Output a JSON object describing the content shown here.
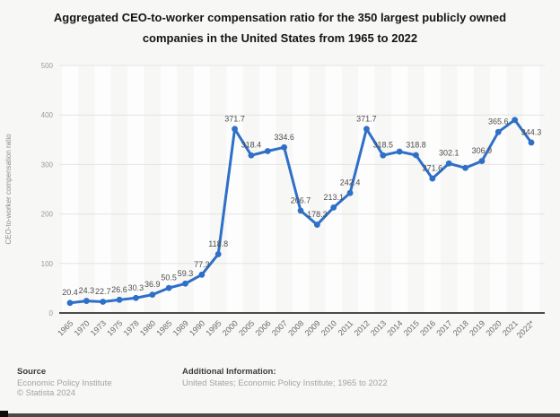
{
  "chart_data": {
    "type": "line",
    "title": "Aggregated CEO-to-worker compensation ratio for the 350 largest publicly owned companies in the United States from 1965 to 2022",
    "xlabel": "",
    "ylabel": "CEO-to-worker compensation ratio",
    "ylim": [
      0,
      500
    ],
    "yticks": [
      0,
      100,
      200,
      300,
      400,
      500
    ],
    "grid": true,
    "legend": false,
    "line_color": "#2e6fc7",
    "categories": [
      "1965",
      "1970",
      "1973",
      "1975",
      "1978",
      "1980",
      "1985",
      "1989",
      "1990",
      "1995",
      "2000",
      "2005",
      "2006",
      "2007",
      "2008",
      "2009",
      "2010",
      "2011",
      "2012",
      "2013",
      "2014",
      "2015",
      "2016",
      "2017",
      "2018",
      "2019",
      "2020",
      "2021",
      "2022*"
    ],
    "values": [
      20.4,
      24.3,
      22.7,
      26.6,
      30.3,
      36.9,
      50.5,
      59.3,
      77.3,
      118.8,
      371.7,
      318.4,
      327,
      334.6,
      206.7,
      178.3,
      213.1,
      242.4,
      371.7,
      318.5,
      326,
      318.8,
      271.6,
      302.1,
      293,
      306.9,
      365.6,
      390,
      344.3
    ],
    "point_labels": [
      "20.4",
      "24.3",
      "22.7",
      "26.6",
      "30.3",
      "36.9",
      "50.5",
      "59.3",
      "77.3",
      "118.8",
      "371.7",
      "318.4",
      "",
      "334.6",
      "206.7",
      "178.3",
      "213.1",
      "242.4",
      "371.7",
      "318.5",
      "",
      "318.8",
      "271.6",
      "302.1",
      "",
      "306.9",
      "365.6",
      "",
      "344.3"
    ]
  },
  "footer": {
    "source_label": "Source",
    "source_name": "Economic Policy Institute",
    "copyright": "© Statista 2024",
    "additional_label": "Additional Information:",
    "additional_text": "United States; Economic Policy Institute; 1965 to 2022"
  }
}
